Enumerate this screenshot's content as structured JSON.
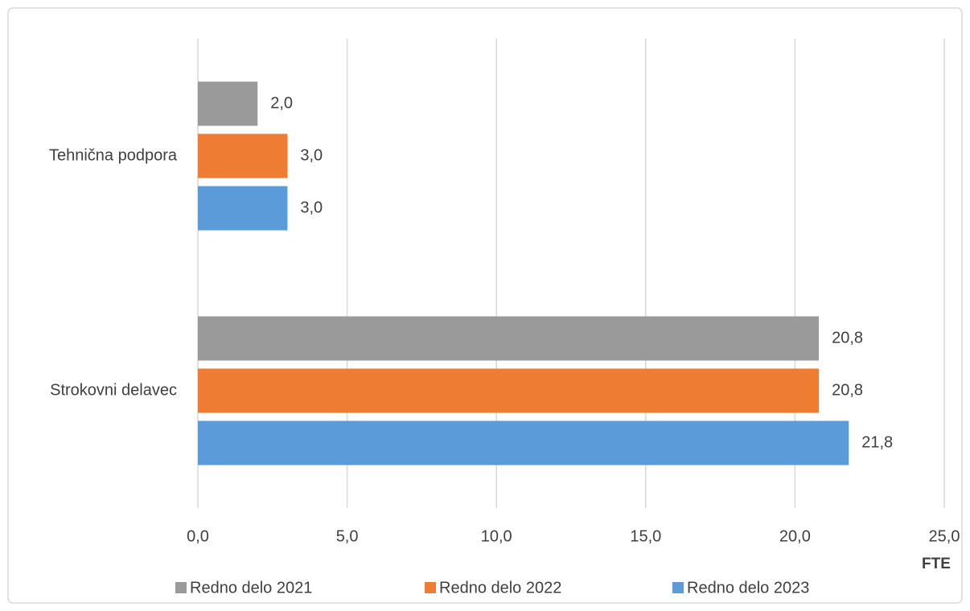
{
  "chart_data": {
    "type": "barh",
    "categories": [
      "Tehnična podpora",
      "Strokovni delavec"
    ],
    "series": [
      {
        "name": "Redno delo 2021",
        "color": "#9a9a9a",
        "values": [
          2.0,
          20.8
        ],
        "value_labels": [
          "2,0",
          "20,8"
        ]
      },
      {
        "name": "Redno delo 2022",
        "color": "#ee7d33",
        "values": [
          3.0,
          20.8
        ],
        "value_labels": [
          "3,0",
          "20,8"
        ]
      },
      {
        "name": "Redno delo 2023",
        "color": "#5b9bd9",
        "values": [
          3.0,
          21.8
        ],
        "value_labels": [
          "3,0",
          "21,8"
        ]
      }
    ],
    "xlim": [
      0,
      25
    ],
    "xticks": [
      {
        "value": 0,
        "label": "0,0"
      },
      {
        "value": 5,
        "label": "5,0"
      },
      {
        "value": 10,
        "label": "10,0"
      },
      {
        "value": 15,
        "label": "15,0"
      },
      {
        "value": 20,
        "label": "20,0"
      },
      {
        "value": 25,
        "label": "25,0"
      }
    ],
    "x_label": "FTE",
    "grid": true,
    "legend": "bottom"
  }
}
